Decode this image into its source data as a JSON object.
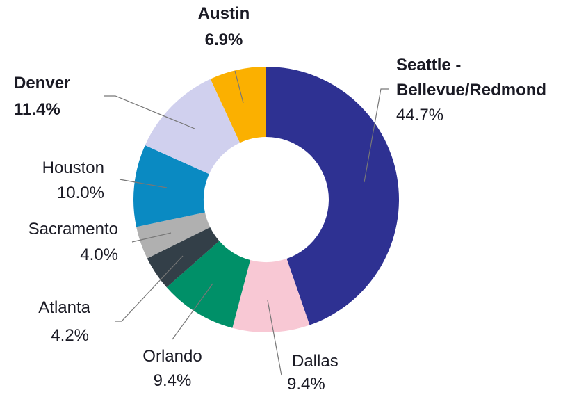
{
  "chart_data": {
    "type": "donut",
    "categories": [
      "Seattle - Bellevue/Redmond",
      "Dallas",
      "Orlando",
      "Atlanta",
      "Sacramento",
      "Houston",
      "Denver",
      "Austin"
    ],
    "values": [
      44.7,
      9.4,
      9.4,
      4.2,
      4.0,
      10.0,
      11.4,
      6.9
    ],
    "value_labels": [
      "44.7%",
      "9.4%",
      "9.4%",
      "4.2%",
      "4.0%",
      "10.0%",
      "11.4%",
      "6.9%"
    ],
    "colors": [
      "#2e3192",
      "#f8c8d4",
      "#009068",
      "#333f48",
      "#b0b0b0",
      "#0a8ac2",
      "#d0d0ee",
      "#fbb000"
    ]
  }
}
